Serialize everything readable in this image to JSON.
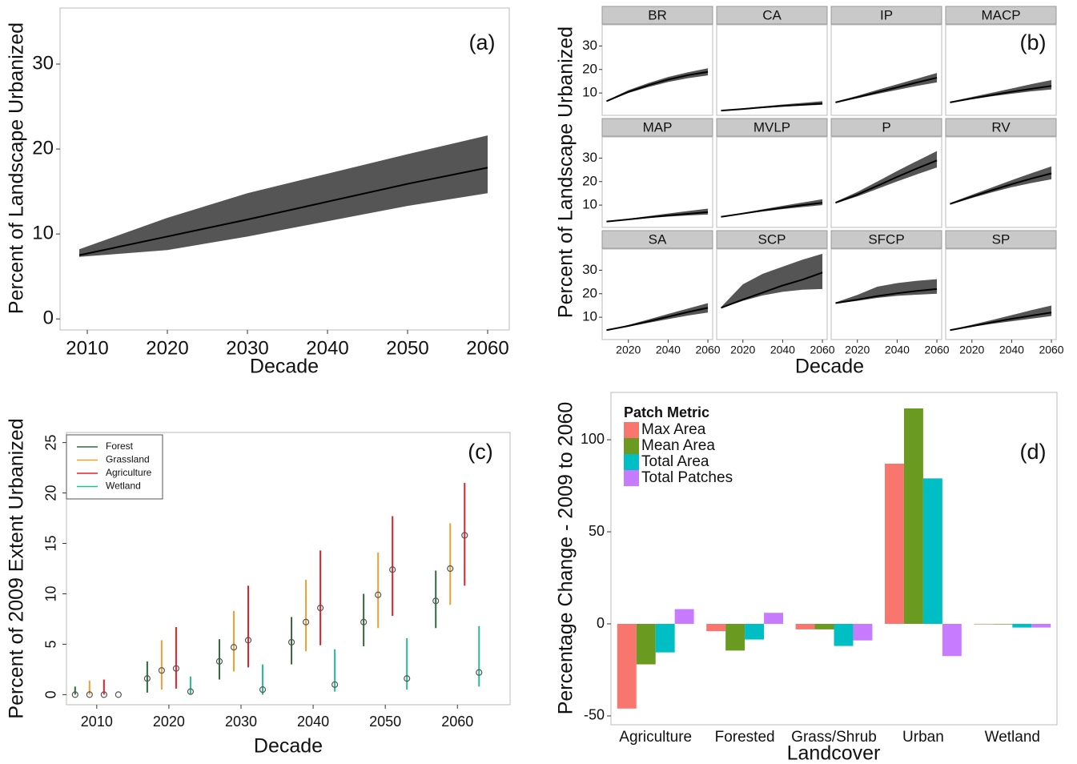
{
  "chart_data": [
    {
      "type": "line",
      "panel_label": "(a)",
      "x_label": "Decade",
      "y_label": "Percent of Landscape Urbanized",
      "x": [
        2009,
        2020,
        2030,
        2040,
        2050,
        2060
      ],
      "values": [
        7.5,
        9.7,
        11.7,
        13.8,
        15.9,
        17.8
      ],
      "lower": [
        7.3,
        8.1,
        9.7,
        11.5,
        13.3,
        14.8
      ],
      "upper": [
        8.2,
        11.9,
        14.8,
        17.1,
        19.4,
        21.6
      ],
      "color": "#000000",
      "band_color": "#555555",
      "xlim": [
        2006.6,
        2062.7
      ],
      "ylim": [
        -1.3,
        36.6
      ],
      "xticks": [
        2010,
        2020,
        2030,
        2040,
        2050,
        2060
      ],
      "yticks": [
        0,
        10,
        20,
        30
      ],
      "grid": false
    },
    {
      "type": "line",
      "panel_label": "(b)",
      "x_label": "Decade",
      "y_label": "Percent of Landscape Urbanized",
      "x": [
        2009,
        2020,
        2030,
        2040,
        2050,
        2060
      ],
      "color": "#000000",
      "band_color": "#555555",
      "xlim": [
        2006.8,
        2062.4
      ],
      "ylim": [
        0.5,
        39
      ],
      "xticks": [
        2020,
        2040,
        2060
      ],
      "yticks": [
        10,
        20,
        30
      ],
      "grid": false,
      "facets": [
        {
          "name": "BR",
          "values": [
            6.5,
            10.5,
            13.3,
            15.7,
            17.6,
            19
          ],
          "lower": [
            6.3,
            10,
            12.5,
            14.7,
            16.3,
            17.5
          ],
          "upper": [
            6.8,
            11.2,
            14.2,
            16.8,
            18.8,
            20.5
          ]
        },
        {
          "name": "CA",
          "values": [
            2.5,
            3.2,
            3.9,
            4.5,
            5,
            5.5
          ],
          "lower": [
            2.4,
            3,
            3.6,
            4.2,
            4.6,
            5
          ],
          "upper": [
            2.6,
            3.5,
            4.3,
            5.1,
            5.8,
            6.5
          ]
        },
        {
          "name": "IP",
          "values": [
            6,
            8.2,
            10.3,
            12.4,
            14.5,
            16.5
          ],
          "lower": [
            5.8,
            7.8,
            9.6,
            11.3,
            13,
            14.5
          ],
          "upper": [
            6.3,
            8.8,
            11.3,
            13.7,
            16.1,
            18.5
          ]
        },
        {
          "name": "MACP",
          "values": [
            6,
            7.7,
            9.1,
            10.5,
            11.8,
            13
          ],
          "lower": [
            5.8,
            7.3,
            8.6,
            9.7,
            10.7,
            11.5
          ],
          "upper": [
            6.3,
            8.3,
            10.1,
            11.9,
            13.8,
            15.5
          ]
        },
        {
          "name": "MAP",
          "values": [
            3,
            3.9,
            4.8,
            5.6,
            6.3,
            7
          ],
          "lower": [
            2.9,
            3.7,
            4.5,
            5.1,
            5.6,
            6
          ],
          "upper": [
            3.1,
            4.2,
            5.3,
            6.4,
            7.5,
            8.5
          ]
        },
        {
          "name": "MVLP",
          "values": [
            5,
            6.4,
            7.7,
            8.9,
            10,
            11
          ],
          "lower": [
            4.9,
            6.2,
            7.3,
            8.3,
            9.2,
            10
          ],
          "upper": [
            5.1,
            6.7,
            8.2,
            9.7,
            11.1,
            12.5
          ]
        },
        {
          "name": "P",
          "values": [
            11,
            14.5,
            18.2,
            22,
            25.6,
            29
          ],
          "lower": [
            10.7,
            13.7,
            16.9,
            20.1,
            23.1,
            26
          ],
          "upper": [
            11.4,
            15.6,
            20,
            24.5,
            28.8,
            33
          ]
        },
        {
          "name": "RV",
          "values": [
            10.5,
            13.6,
            16.3,
            18.9,
            21.3,
            23.5
          ],
          "lower": [
            10.2,
            13,
            15.4,
            17.6,
            19.4,
            21
          ],
          "upper": [
            10.9,
            14.4,
            17.5,
            20.6,
            23.6,
            26.5
          ]
        },
        {
          "name": "SA",
          "values": [
            4.5,
            6.3,
            8.2,
            10.2,
            12.2,
            14
          ],
          "lower": [
            4.4,
            6,
            7.6,
            9.2,
            10.7,
            12
          ],
          "upper": [
            4.6,
            6.7,
            9,
            11.4,
            13.7,
            16
          ]
        },
        {
          "name": "SCP",
          "values": [
            14,
            17.5,
            20.5,
            23.5,
            26,
            29
          ],
          "lower": [
            13.8,
            17,
            19.3,
            20.8,
            21.7,
            22
          ],
          "upper": [
            14.3,
            24,
            28.5,
            31.5,
            34.5,
            37
          ]
        },
        {
          "name": "SFCP",
          "values": [
            16,
            17.5,
            19,
            20.2,
            21.2,
            22
          ],
          "lower": [
            15.8,
            17,
            18.2,
            19.1,
            19.6,
            20
          ],
          "upper": [
            16.3,
            19.5,
            23,
            24.5,
            25.5,
            26.2
          ]
        },
        {
          "name": "SP",
          "values": [
            4.5,
            6.2,
            7.8,
            9.3,
            10.7,
            12
          ],
          "lower": [
            4.4,
            5.9,
            7.2,
            8.3,
            9.4,
            10.5
          ],
          "upper": [
            4.7,
            6.8,
            8.8,
            10.9,
            13,
            15
          ]
        }
      ]
    },
    {
      "type": "errorbar",
      "panel_label": "(c)",
      "x_label": "Decade",
      "y_label": "Percent of 2009 Extent Urbanized",
      "xlim": [
        2005.8,
        2067.3
      ],
      "ylim": [
        -1,
        26
      ],
      "xticks": [
        2010,
        2020,
        2030,
        2040,
        2050,
        2060
      ],
      "yticks": [
        0,
        5,
        10,
        15,
        20,
        25
      ],
      "grid": false,
      "legend": "top-left",
      "series": [
        {
          "name": "Forest",
          "color": "#2e6b3a",
          "x": [
            2007,
            2017,
            2027,
            2037,
            2047,
            2057
          ],
          "values": [
            0,
            1.6,
            3.3,
            5.2,
            7.2,
            9.3
          ],
          "lower": [
            0,
            0.2,
            1.5,
            3,
            4.8,
            6.6
          ],
          "upper": [
            0.8,
            3.3,
            5.5,
            7.7,
            10,
            12.3
          ]
        },
        {
          "name": "Grassland",
          "color": "#f0a030",
          "x": [
            2009,
            2019,
            2029,
            2039,
            2049,
            2059
          ],
          "values": [
            0,
            2.4,
            4.7,
            7.2,
            9.9,
            12.5
          ],
          "lower": [
            0,
            0.5,
            2.3,
            4.3,
            6.6,
            8.9
          ],
          "upper": [
            1.4,
            5.4,
            8.3,
            11.4,
            14.1,
            17
          ]
        },
        {
          "name": "Agriculture",
          "color": "#e8202a",
          "x": [
            2011,
            2021,
            2031,
            2041,
            2051,
            2061
          ],
          "values": [
            0,
            2.6,
            5.4,
            8.6,
            12.4,
            15.8
          ],
          "lower": [
            0,
            0.6,
            2.7,
            4.9,
            7.8,
            10.8
          ],
          "upper": [
            1.5,
            6.7,
            10.8,
            14.3,
            17.7,
            21
          ]
        },
        {
          "name": "Wetland",
          "color": "#20c090",
          "x": [
            2013,
            2023,
            2033,
            2043,
            2053,
            2063
          ],
          "values": [
            0,
            0.3,
            0.5,
            1,
            1.6,
            2.2
          ],
          "lower": [
            0,
            0,
            0,
            0.3,
            0.5,
            0.8
          ],
          "upper": [
            0,
            1.8,
            3,
            4.5,
            5.6,
            6.8
          ]
        }
      ]
    },
    {
      "type": "bar",
      "panel_label": "(d)",
      "x_label": "Landcover",
      "y_label": "Percentage Change - 2009 to 2060",
      "legend_title": "Patch Metric",
      "legend": "top-left",
      "categories": [
        "Agriculture",
        "Forested",
        "Grass/Shrub",
        "Urban",
        "Wetland"
      ],
      "ylim": [
        -54.8,
        125.7
      ],
      "yticks": [
        -50,
        0,
        50,
        100
      ],
      "grid": false,
      "series": [
        {
          "name": "Max Area",
          "color": "#f8766d",
          "values": [
            -46,
            -4,
            -3,
            87,
            -0.3
          ]
        },
        {
          "name": "Mean Area",
          "color": "#6a9a1f",
          "values": [
            -22,
            -14.5,
            -3,
            117,
            -0.3
          ]
        },
        {
          "name": "Total Area",
          "color": "#00bfc4",
          "values": [
            -15.5,
            -8.5,
            -12,
            79,
            -2
          ]
        },
        {
          "name": "Total Patches",
          "color": "#c77cff",
          "values": [
            8,
            6,
            -9,
            -17.5,
            -2
          ]
        }
      ]
    }
  ]
}
